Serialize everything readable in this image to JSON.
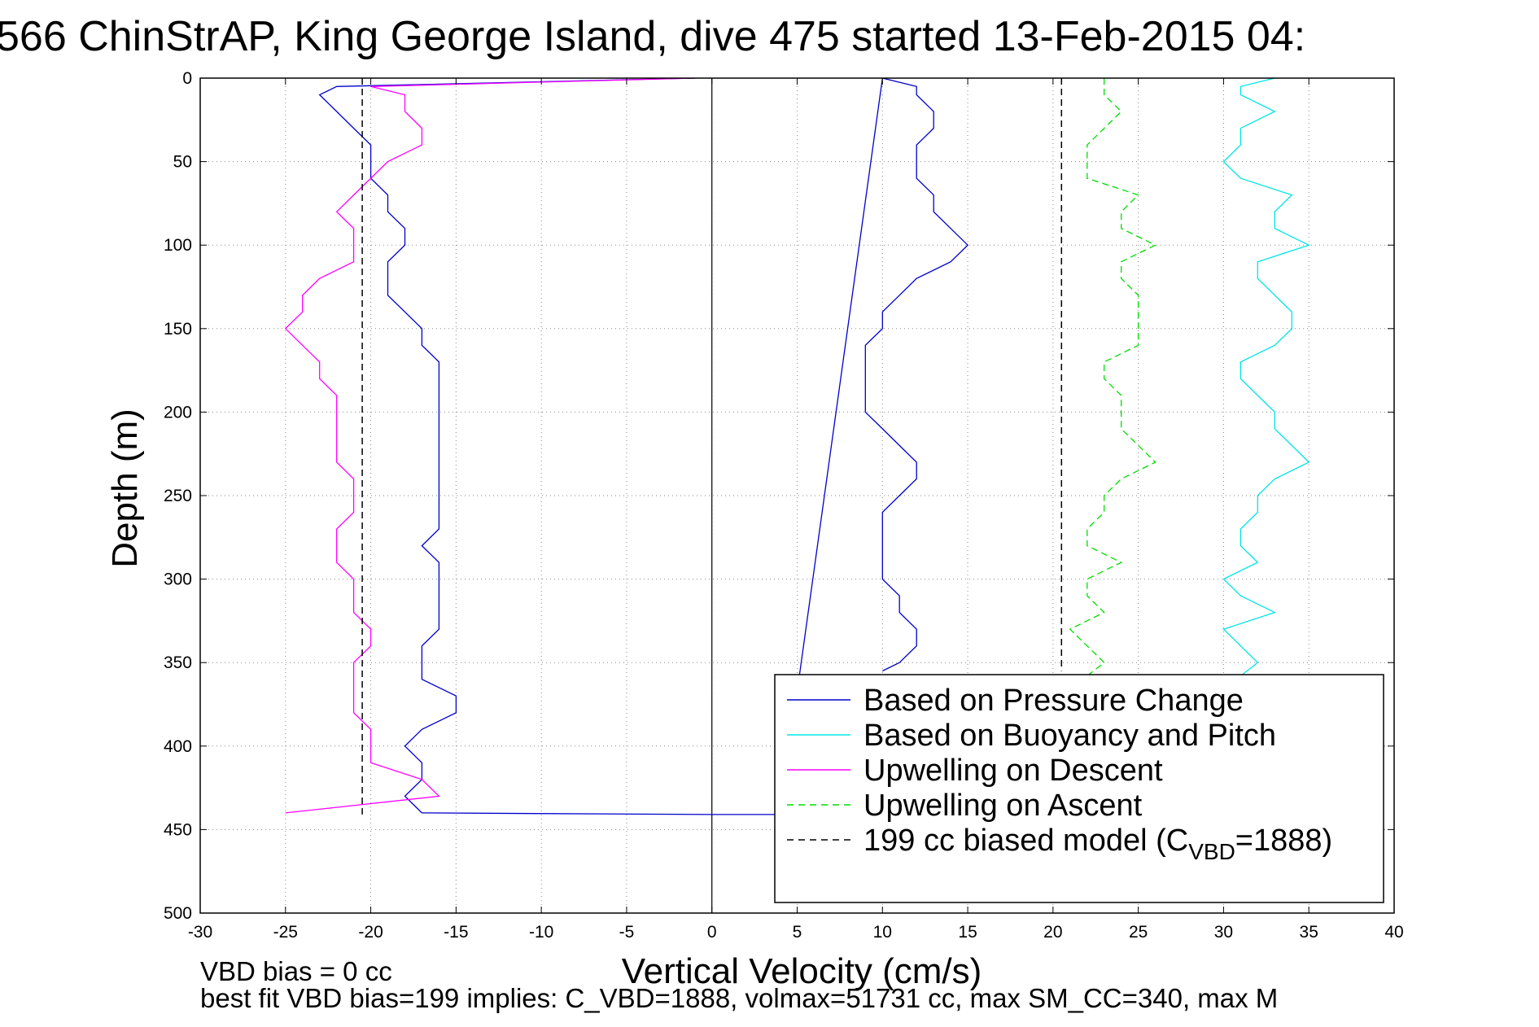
{
  "title": "566 ChinStrAP, King George Island, dive 475 started 13-Feb-2015 04:",
  "footer": {
    "line1": "VBD bias = 0 cc",
    "line2": "best fit VBD bias=199 implies: C_VBD=1888, volmax=51731 cc, max SM_CC=340, max M"
  },
  "colors": {
    "pressure": "#0000cc",
    "buoyancy": "#00e5e5",
    "descent": "#ff00ff",
    "ascent": "#00dd00",
    "model": "#000000",
    "zero_line": "#000000"
  },
  "chart_data": {
    "type": "line",
    "title": "566 ChinStrAP, King George Island, dive 475 started 13-Feb-2015 04:",
    "xlabel": "Vertical Velocity (cm/s)",
    "ylabel": "Depth (m)",
    "xlim": [
      -30,
      40
    ],
    "ylim": [
      500,
      0
    ],
    "y_reversed": true,
    "grid": true,
    "legend_position": "bottom-right",
    "xticks": [
      -30,
      -25,
      -20,
      -15,
      -10,
      -5,
      0,
      5,
      10,
      15,
      20,
      25,
      30,
      35,
      40
    ],
    "yticks": [
      0,
      50,
      100,
      150,
      200,
      250,
      300,
      350,
      400,
      450,
      500
    ],
    "legend": [
      {
        "name": "Based on Pressure Change",
        "key": "pressure",
        "dash": ""
      },
      {
        "name": "Based on Buoyancy and Pitch",
        "key": "buoyancy",
        "dash": ""
      },
      {
        "name": "Upwelling on Descent",
        "key": "descent",
        "dash": ""
      },
      {
        "name": "Upwelling on Ascent",
        "key": "ascent",
        "dash": "8,6"
      },
      {
        "name": "199 cc biased model (C",
        "sub": "VBD",
        "suffix": "=1888)",
        "key": "model",
        "dash": "8,6"
      }
    ],
    "series": [
      {
        "name": "Based on Pressure Change",
        "key": "pressure",
        "segments": [
          {
            "depth": [
              0,
              5,
              10,
              20,
              30,
              40,
              50,
              60,
              70,
              80,
              90,
              100,
              110,
              120,
              130,
              140,
              150,
              160,
              170,
              180,
              190,
              200,
              210,
              220,
              230,
              240,
              250,
              260,
              270,
              280,
              290,
              300,
              310,
              320,
              330,
              340,
              350,
              360,
              370,
              380,
              390,
              400,
              410,
              420,
              430,
              440
            ],
            "velocity": [
              -1,
              -22,
              -23,
              -22,
              -21,
              -20,
              -20,
              -20,
              -19,
              -19,
              -18,
              -18,
              -19,
              -19,
              -19,
              -18,
              -17,
              -17,
              -16,
              -16,
              -16,
              -16,
              -16,
              -16,
              -16,
              -16,
              -16,
              -16,
              -16,
              -17,
              -16,
              -16,
              -16,
              -16,
              -16,
              -17,
              -17,
              -17,
              -15,
              -15,
              -17,
              -18,
              -17,
              -17,
              -18,
              -17
            ]
          },
          {
            "depth": [
              440,
              441,
              441,
              0,
              5,
              10,
              20,
              30,
              40,
              50,
              60,
              70,
              80,
              90,
              100,
              110,
              120,
              130,
              140,
              150,
              160,
              170,
              180,
              190,
              200,
              210,
              220,
              230,
              240,
              250,
              260,
              270,
              280,
              290,
              300,
              310,
              320,
              330,
              340,
              350,
              355
            ],
            "velocity": [
              -17,
              0,
              4,
              10,
              12,
              12,
              13,
              13,
              12,
              12,
              12,
              13,
              13,
              14,
              15,
              14,
              12,
              11,
              10,
              10,
              9,
              9,
              9,
              9,
              9,
              10,
              11,
              12,
              12,
              11,
              10,
              10,
              10,
              10,
              10,
              11,
              11,
              12,
              12,
              11,
              10
            ]
          }
        ]
      },
      {
        "name": "Based on Buoyancy and Pitch",
        "key": "buoyancy",
        "segments": [
          {
            "depth": [
              0,
              5,
              10,
              20,
              30,
              40,
              50,
              60,
              70,
              80,
              90,
              100,
              110,
              120,
              130,
              140,
              150,
              160,
              170,
              180,
              190,
              200,
              210,
              220,
              230,
              240,
              250,
              260,
              270,
              280,
              290,
              300,
              310,
              320,
              330,
              340,
              350,
              358
            ],
            "velocity": [
              33,
              31,
              31,
              33,
              31,
              31,
              30,
              31,
              34,
              33,
              33,
              35,
              32,
              32,
              33,
              34,
              34,
              33,
              31,
              31,
              32,
              33,
              33,
              34,
              35,
              33,
              32,
              32,
              31,
              31,
              32,
              30,
              31,
              33,
              30,
              31,
              32,
              31
            ]
          }
        ]
      },
      {
        "name": "Upwelling on Descent",
        "key": "descent",
        "segments": [
          {
            "depth": [
              0,
              5,
              10,
              20,
              30,
              40,
              50,
              60,
              70,
              80,
              90,
              100,
              110,
              120,
              130,
              140,
              150,
              160,
              170,
              180,
              190,
              200,
              210,
              220,
              230,
              240,
              250,
              260,
              270,
              280,
              290,
              300,
              310,
              320,
              330,
              340,
              350,
              360,
              370,
              380,
              390,
              400,
              410,
              420,
              430,
              440
            ],
            "velocity": [
              -1,
              -20,
              -18,
              -18,
              -17,
              -17,
              -19,
              -20,
              -21,
              -22,
              -21,
              -21,
              -21,
              -23,
              -24,
              -24,
              -25,
              -24,
              -23,
              -23,
              -22,
              -22,
              -22,
              -22,
              -22,
              -21,
              -21,
              -21,
              -22,
              -22,
              -22,
              -21,
              -21,
              -21,
              -20,
              -20,
              -21,
              -21,
              -21,
              -21,
              -20,
              -20,
              -20,
              -17,
              -16,
              -25
            ]
          }
        ]
      },
      {
        "name": "Upwelling on Ascent",
        "key": "ascent",
        "segments": [
          {
            "depth": [
              0,
              5,
              10,
              20,
              30,
              40,
              50,
              60,
              70,
              80,
              90,
              100,
              110,
              120,
              130,
              140,
              150,
              160,
              170,
              180,
              190,
              200,
              210,
              220,
              230,
              240,
              250,
              260,
              270,
              280,
              290,
              300,
              310,
              320,
              330,
              340,
              350,
              358
            ],
            "velocity": [
              23,
              23,
              23,
              24,
              23,
              22,
              22,
              22,
              25,
              24,
              24,
              26,
              24,
              24,
              25,
              25,
              25,
              25,
              23,
              23,
              24,
              24,
              24,
              25,
              26,
              24,
              23,
              23,
              22,
              22,
              24,
              22,
              22,
              23,
              21,
              22,
              23,
              22
            ]
          }
        ]
      },
      {
        "name": "199 cc biased model (CVBD=1888)",
        "key": "model",
        "segments": [
          {
            "depth": [
              0,
              441
            ],
            "velocity": [
              -20.5,
              -20.5
            ]
          },
          {
            "depth": [
              0,
              355
            ],
            "velocity": [
              20.5,
              20.5
            ]
          }
        ]
      }
    ]
  }
}
